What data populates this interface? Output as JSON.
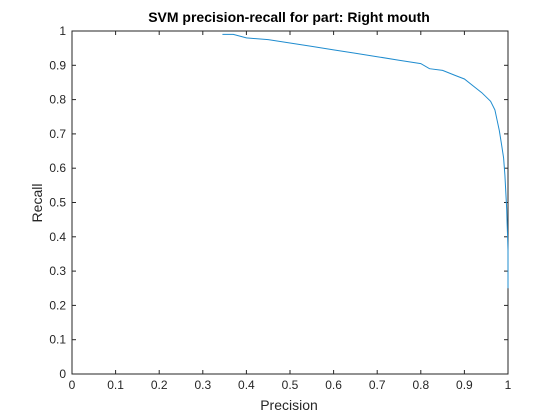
{
  "chart_data": {
    "type": "line",
    "title": "SVM precision-recall for part: Right mouth",
    "xlabel": "Precision",
    "ylabel": "Recall",
    "xlim": [
      0,
      1
    ],
    "ylim": [
      0,
      1
    ],
    "xticks": [
      0,
      0.1,
      0.2,
      0.3,
      0.4,
      0.5,
      0.6,
      0.7,
      0.8,
      0.9,
      1
    ],
    "xtick_labels": [
      "0",
      "0.1",
      "0.2",
      "0.3",
      "0.4",
      "0.5",
      "0.6",
      "0.7",
      "0.8",
      "0.9",
      "1"
    ],
    "yticks": [
      0,
      0.1,
      0.2,
      0.3,
      0.4,
      0.5,
      0.6,
      0.7,
      0.8,
      0.9,
      1
    ],
    "ytick_labels": [
      "0",
      "0.1",
      "0.2",
      "0.3",
      "0.4",
      "0.5",
      "0.6",
      "0.7",
      "0.8",
      "0.9",
      "1"
    ],
    "grid": false,
    "series": [
      {
        "name": "Right mouth",
        "color": "#1f8ccf",
        "x": [
          0.345,
          0.37,
          0.4,
          0.45,
          0.5,
          0.55,
          0.6,
          0.65,
          0.7,
          0.75,
          0.8,
          0.82,
          0.85,
          0.88,
          0.9,
          0.92,
          0.94,
          0.96,
          0.97,
          0.975,
          0.98,
          0.985,
          0.99,
          0.993,
          0.995,
          0.997,
          0.998,
          0.999,
          1.0,
          1.0,
          1.0,
          1.0
        ],
        "y": [
          0.99,
          0.99,
          0.98,
          0.975,
          0.965,
          0.955,
          0.945,
          0.935,
          0.925,
          0.915,
          0.905,
          0.89,
          0.885,
          0.87,
          0.86,
          0.84,
          0.82,
          0.795,
          0.77,
          0.74,
          0.71,
          0.67,
          0.63,
          0.58,
          0.53,
          0.48,
          0.44,
          0.4,
          0.36,
          0.3,
          0.27,
          0.25
        ]
      }
    ]
  }
}
